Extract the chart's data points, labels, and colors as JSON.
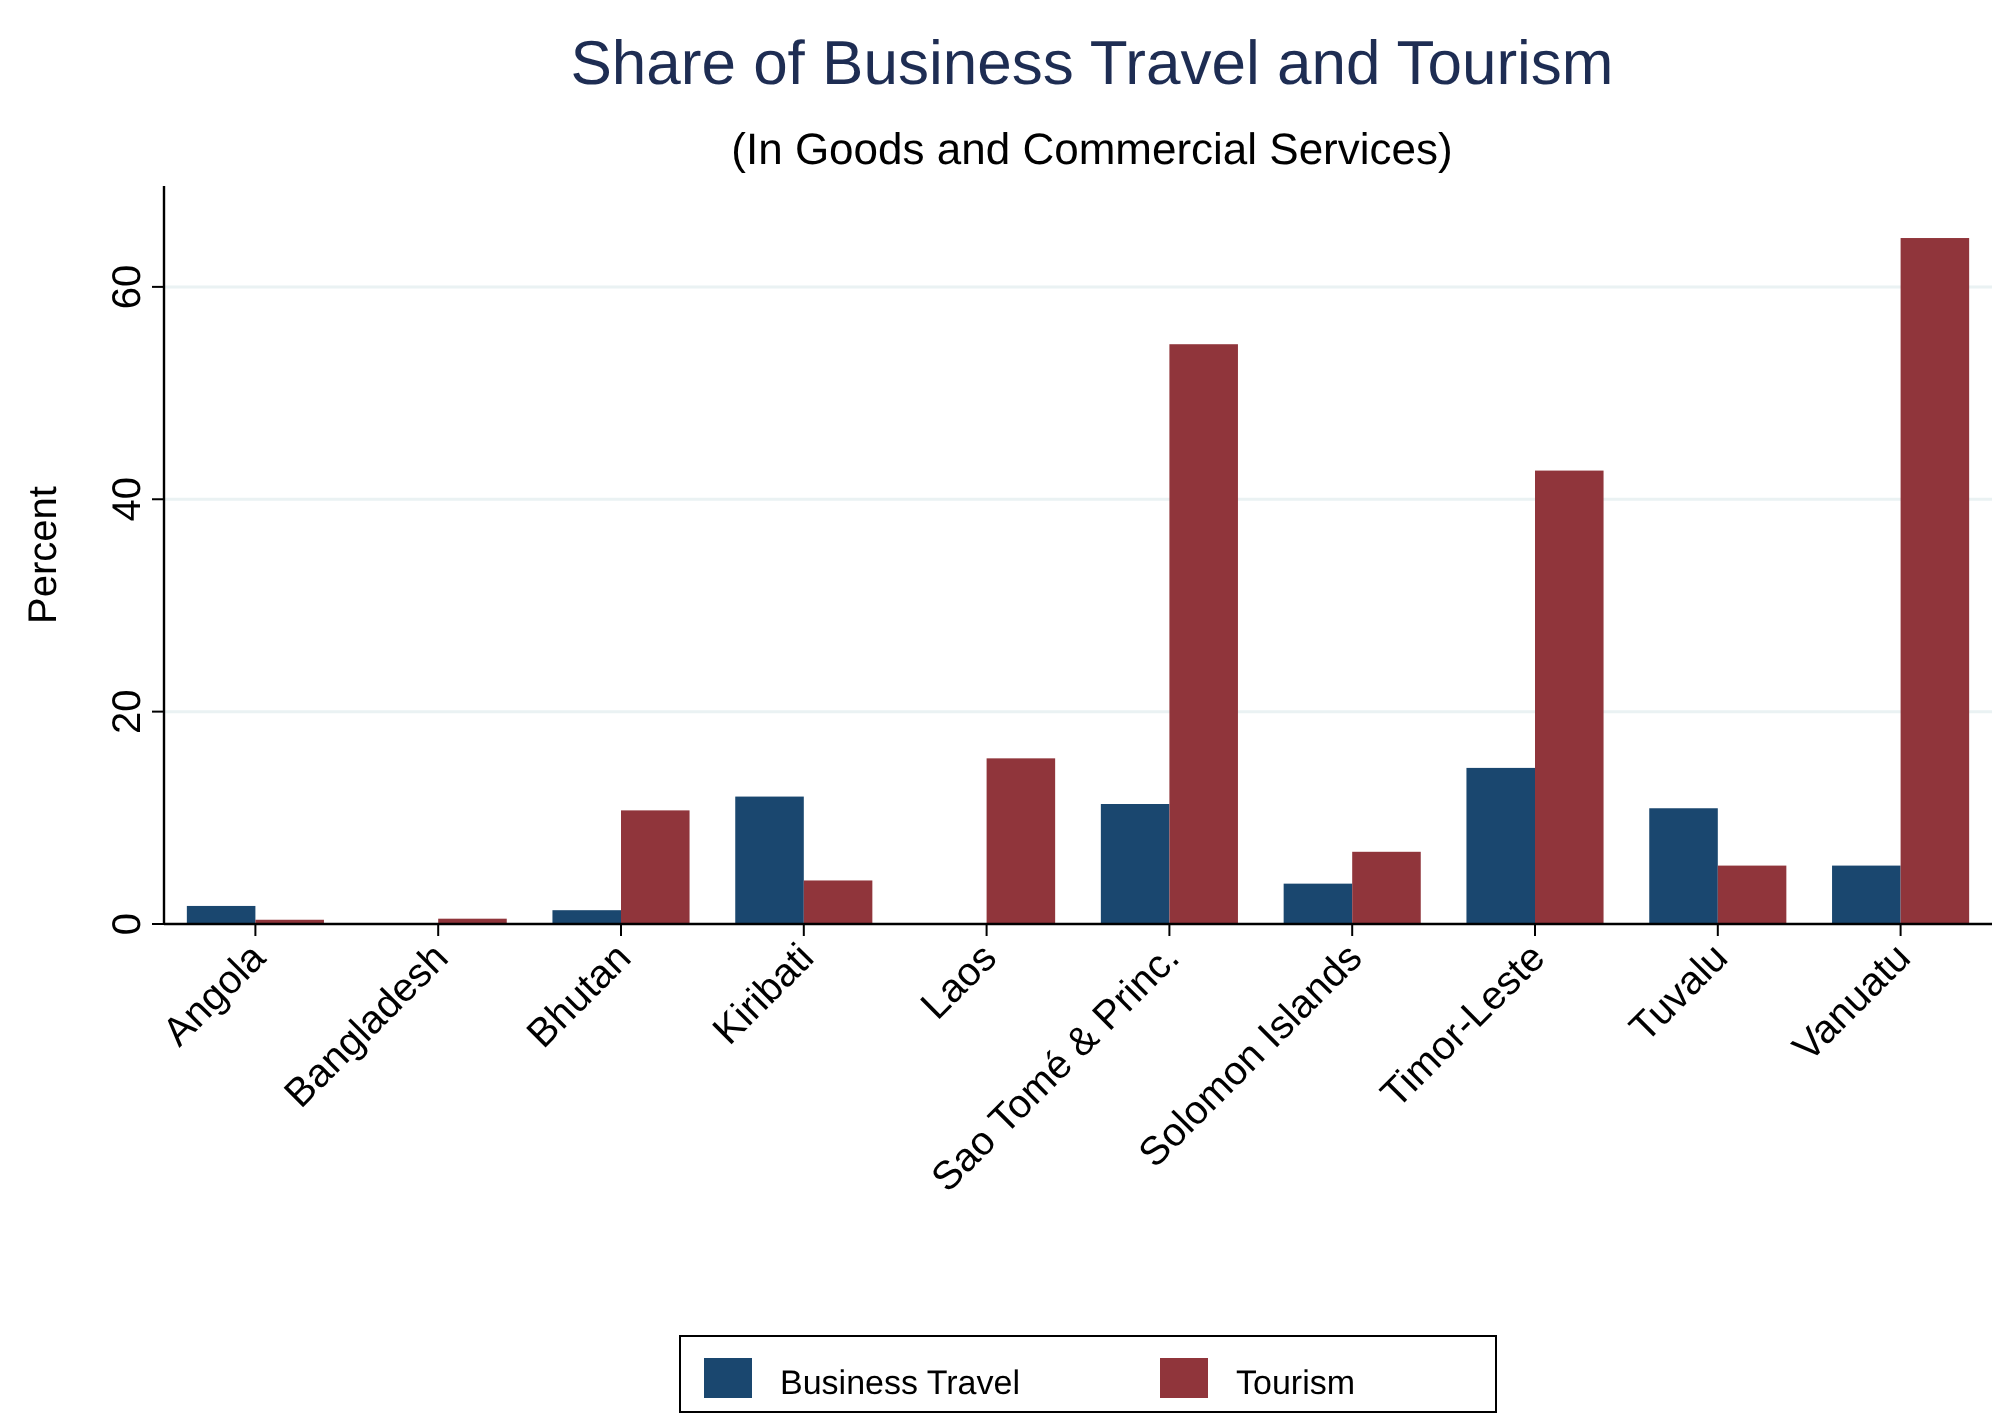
{
  "chart_data": {
    "type": "bar",
    "title": "Share of Business Travel and Tourism",
    "subtitle": "(In Goods and Commercial Services)",
    "ylabel": "Percent",
    "categories": [
      "Angola",
      "Bangladesh",
      "Bhutan",
      "Kiribati",
      "Laos",
      "Sao Tomé & Princ.",
      "Solomon Islands",
      "Timor-Leste",
      "Tuvalu",
      "Vanuatu"
    ],
    "series": [
      {
        "name": "Business Travel",
        "color": "#1a476f",
        "values": [
          1.7,
          0,
          1.3,
          12.0,
          0,
          11.3,
          3.8,
          14.7,
          10.9,
          5.5
        ]
      },
      {
        "name": "Tourism",
        "color": "#90353b",
        "values": [
          0.4,
          0.5,
          10.7,
          4.1,
          15.6,
          54.6,
          6.8,
          42.7,
          5.5,
          64.6
        ]
      }
    ],
    "ylim": [
      0,
      69.5
    ],
    "yticks": [
      0,
      20,
      40,
      60
    ],
    "grid": "y",
    "legend": "bottom"
  }
}
